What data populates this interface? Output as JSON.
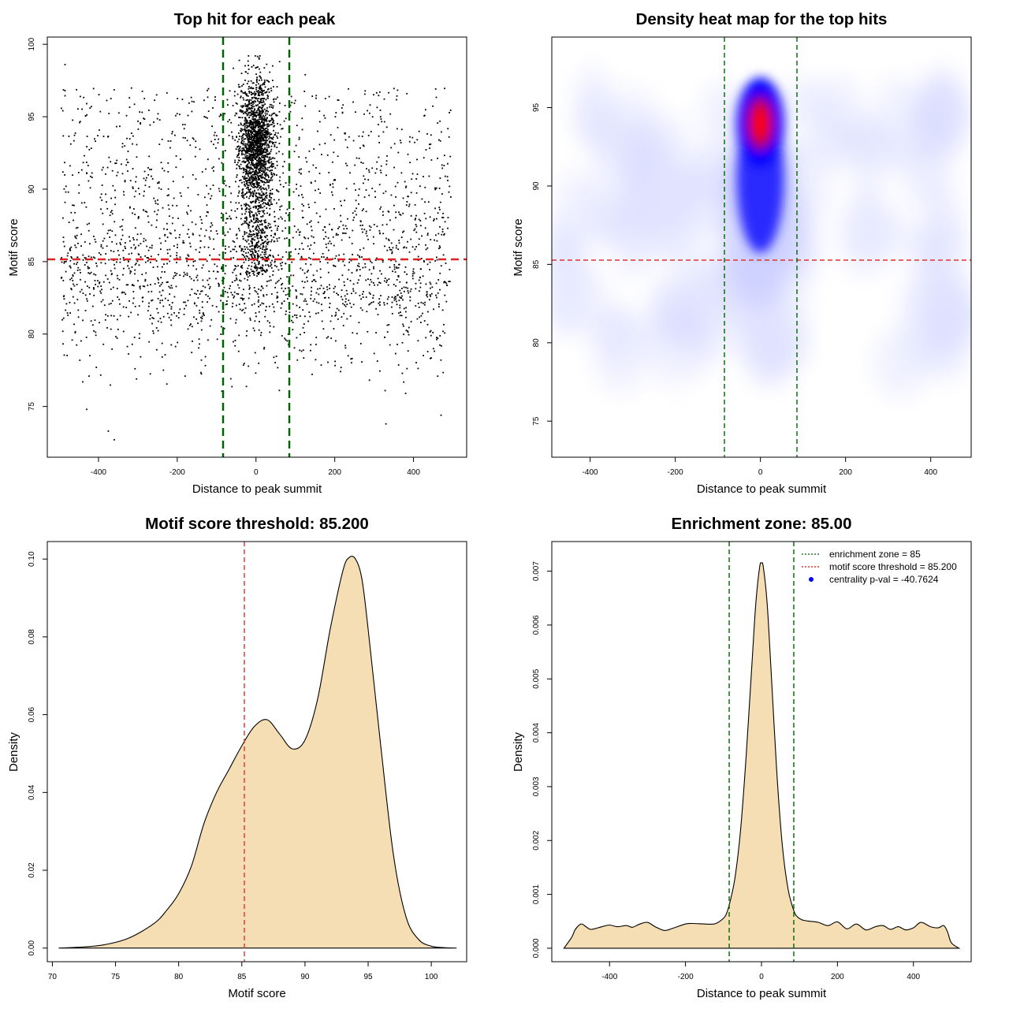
{
  "chart_data": [
    {
      "type": "scatter",
      "title": "Top hit for each peak",
      "xlabel": "Distance to peak summit",
      "ylabel": "Motif score",
      "xlim": [
        -530,
        535
      ],
      "ylim": [
        71.5,
        100.5
      ],
      "xticks": [
        -400,
        -200,
        0,
        200,
        400
      ],
      "yticks": [
        75,
        80,
        85,
        90,
        95,
        100
      ],
      "threshold": 85.2,
      "threshold_color": "#dd2222",
      "enrichment_zone": [
        -85,
        85
      ],
      "zone_color": "#006400",
      "point_color": "#000000",
      "n_points": 5000,
      "sample_points": [
        [
          -485,
          98.6
        ],
        [
          -360,
          72.7
        ],
        [
          -375,
          73.3
        ],
        [
          -430,
          74.8
        ],
        [
          330,
          73.8
        ],
        [
          470,
          74.4
        ],
        [
          380,
          75.9
        ],
        [
          -440,
          76.7
        ],
        [
          -180,
          77.1
        ],
        [
          10,
          99.2
        ],
        [
          60,
          98.8
        ],
        [
          125,
          97.9
        ]
      ]
    },
    {
      "type": "heatmap",
      "title": "Density heat map for the top hits",
      "xlabel": "Distance to peak summit",
      "ylabel": "Motif score",
      "xlim": [
        -490,
        495
      ],
      "ylim": [
        72.7,
        99.5
      ],
      "xticks": [
        -400,
        -200,
        0,
        200,
        400
      ],
      "yticks": [
        75,
        80,
        85,
        90,
        95
      ],
      "colors": [
        "#ffffff",
        "#0000ff",
        "#ff0000"
      ],
      "hotspot": {
        "x": 0,
        "y": 94
      },
      "threshold": 85.2,
      "enrichment_zone": [
        -85,
        85
      ]
    },
    {
      "type": "area",
      "title": "Motif score threshold: 85.200",
      "xlabel": "Motif score",
      "ylabel": "Density",
      "xlim": [
        69.6,
        102.8
      ],
      "ylim": [
        -0.0035,
        0.1045
      ],
      "xticks": [
        70,
        75,
        80,
        85,
        90,
        95,
        100
      ],
      "yticks": [
        0.0,
        0.02,
        0.04,
        0.06,
        0.08,
        0.1
      ],
      "ytick_labels": [
        "0.00",
        "0.02",
        "0.04",
        "0.06",
        "0.08",
        "0.10"
      ],
      "fill": "#f5deb3",
      "threshold": 85.2,
      "x": [
        70.5,
        72,
        74,
        76,
        78,
        79,
        80,
        81,
        82,
        83,
        84,
        85,
        86,
        87,
        88,
        89,
        90,
        91,
        92,
        93,
        93.5,
        94,
        94.5,
        95,
        96,
        97,
        98,
        99,
        100,
        101,
        102
      ],
      "y": [
        0.0,
        0.0002,
        0.0008,
        0.0025,
        0.0062,
        0.0095,
        0.014,
        0.021,
        0.032,
        0.04,
        0.046,
        0.052,
        0.057,
        0.0587,
        0.055,
        0.0512,
        0.0535,
        0.064,
        0.082,
        0.097,
        0.1004,
        0.1,
        0.095,
        0.082,
        0.052,
        0.024,
        0.008,
        0.0022,
        0.0005,
        0.0001,
        0.0
      ]
    },
    {
      "type": "area",
      "title": "Enrichment zone: 85.00",
      "xlabel": "Distance to peak summit",
      "ylabel": "Density",
      "xlim": [
        -552,
        552
      ],
      "ylim": [
        -0.00025,
        0.00755
      ],
      "xticks": [
        -400,
        -200,
        0,
        200,
        400
      ],
      "yticks": [
        0.0,
        0.001,
        0.002,
        0.003,
        0.004,
        0.005,
        0.006,
        0.007
      ],
      "ytick_labels": [
        "0.000",
        "0.001",
        "0.002",
        "0.003",
        "0.004",
        "0.005",
        "0.006",
        "0.007"
      ],
      "fill": "#f5deb3",
      "enrichment_zone": [
        -85,
        85
      ],
      "x": [
        -520,
        -500,
        -490,
        -475,
        -462,
        -448,
        -420,
        -400,
        -380,
        -355,
        -340,
        -320,
        -300,
        -280,
        -255,
        -230,
        -200,
        -180,
        -150,
        -125,
        -110,
        -95,
        -85,
        -70,
        -55,
        -40,
        -25,
        -15,
        -5,
        0,
        5,
        15,
        25,
        40,
        55,
        70,
        85,
        95,
        110,
        130,
        150,
        175,
        200,
        225,
        250,
        275,
        300,
        320,
        340,
        360,
        380,
        400,
        420,
        445,
        465,
        480,
        490,
        500,
        520
      ],
      "y": [
        0.0,
        0.0002,
        0.00035,
        0.00045,
        0.0004,
        0.00035,
        0.0004,
        0.00043,
        0.0004,
        0.00042,
        0.00039,
        0.00045,
        0.00048,
        0.0004,
        0.00033,
        0.00038,
        0.00045,
        0.00046,
        0.00045,
        0.00045,
        0.0005,
        0.0006,
        0.0008,
        0.0013,
        0.0022,
        0.0036,
        0.0053,
        0.0064,
        0.00707,
        0.00715,
        0.00707,
        0.0064,
        0.0052,
        0.0033,
        0.0019,
        0.0011,
        0.0007,
        0.00058,
        0.00052,
        0.0005,
        0.00048,
        0.00042,
        0.00049,
        0.00036,
        0.00045,
        0.00034,
        0.0004,
        0.00042,
        0.00035,
        0.0004,
        0.00034,
        0.00038,
        0.00048,
        0.0004,
        0.00038,
        0.00042,
        0.0003,
        0.0001,
        0.0
      ],
      "legend": {
        "position": "top-right",
        "entries": [
          {
            "label": "enrichment zone = 85",
            "color": "#006400",
            "kind": "dotted-line"
          },
          {
            "label": "motif score threshold = 85.200",
            "color": "#ff0000",
            "kind": "dotted-line"
          },
          {
            "label": "centrality p-val = -40.7624",
            "color": "#0000ff",
            "kind": "point"
          }
        ]
      }
    }
  ]
}
